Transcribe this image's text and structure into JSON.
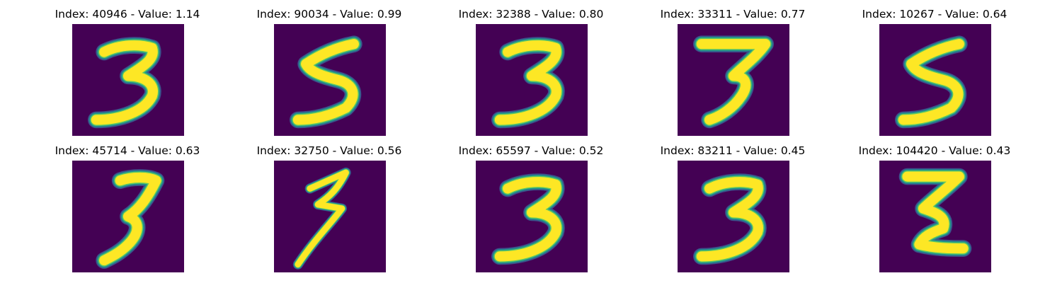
{
  "colors": {
    "background": "#440154",
    "low": "#3b528b",
    "mid": "#21918c",
    "high_mid": "#5ec962",
    "high": "#fde725"
  },
  "panels": [
    {
      "title": "Index: 40946 - Value: 1.14",
      "glyph": "3"
    },
    {
      "title": "Index: 90034 - Value: 0.99",
      "glyph": "5"
    },
    {
      "title": "Index: 32388 - Value: 0.80",
      "glyph": "3"
    },
    {
      "title": "Index: 33311 - Value: 0.77",
      "glyph": "7-3"
    },
    {
      "title": "Index: 10267 - Value: 0.64",
      "glyph": "5"
    },
    {
      "title": "Index: 45714 - Value: 0.63",
      "glyph": "7-5"
    },
    {
      "title": "Index: 32750 - Value: 0.56",
      "glyph": "3-thin"
    },
    {
      "title": "Index: 65597 - Value: 0.52",
      "glyph": "3"
    },
    {
      "title": "Index: 83211 - Value: 0.45",
      "glyph": "3"
    },
    {
      "title": "Index: 104420 - Value: 0.43",
      "glyph": "3-z"
    }
  ]
}
